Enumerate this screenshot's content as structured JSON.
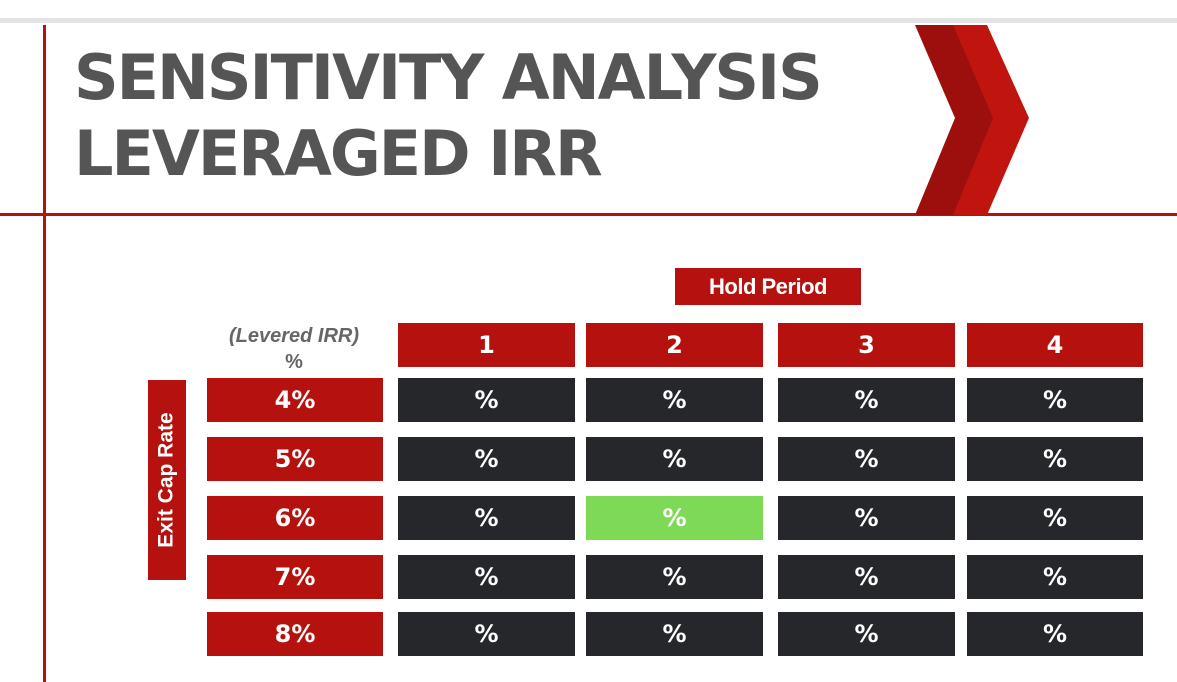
{
  "title": {
    "line1": "SENSITIVITY ANALYSIS",
    "line2": "LEVERAGED IRR"
  },
  "hold_period_label": "Hold Period",
  "levered_irr_label": {
    "line1": "(Levered IRR)",
    "line2": "%"
  },
  "exit_cap_rate_label": "Exit Cap Rate",
  "columns": [
    "1",
    "2",
    "3",
    "4"
  ],
  "rows": [
    {
      "label": "4%",
      "cells": [
        "%",
        "%",
        "%",
        "%"
      ]
    },
    {
      "label": "5%",
      "cells": [
        "%",
        "%",
        "%",
        "%"
      ]
    },
    {
      "label": "6%",
      "cells": [
        "%",
        "%",
        "%",
        "%"
      ]
    },
    {
      "label": "7%",
      "cells": [
        "%",
        "%",
        "%",
        "%"
      ]
    },
    {
      "label": "8%",
      "cells": [
        "%",
        "%",
        "%",
        "%"
      ]
    }
  ],
  "highlighted_cell": {
    "row": 2,
    "col": 1
  },
  "colors": {
    "accent_red": "#b5120f",
    "dark_red": "#9c0f0d",
    "cell_dark": "#26272b",
    "highlight_green": "#7ed957",
    "title_gray": "#555555"
  }
}
